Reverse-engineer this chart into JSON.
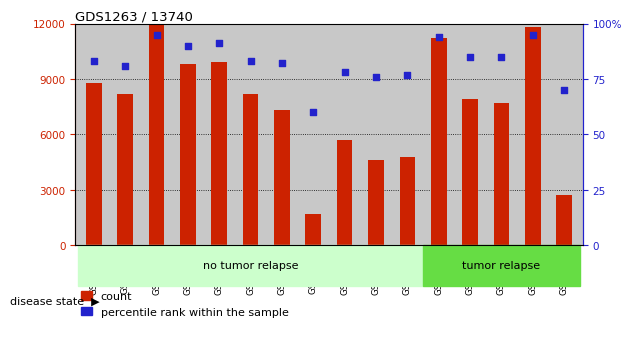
{
  "title": "GDS1263 / 13740",
  "categories": [
    "GSM50474",
    "GSM50496",
    "GSM50504",
    "GSM50505",
    "GSM50506",
    "GSM50507",
    "GSM50508",
    "GSM50509",
    "GSM50511",
    "GSM50512",
    "GSM50473",
    "GSM50475",
    "GSM50510",
    "GSM50513",
    "GSM50514",
    "GSM50515"
  ],
  "counts": [
    8800,
    8200,
    12000,
    9800,
    9900,
    8200,
    7300,
    1700,
    5700,
    4600,
    4800,
    11200,
    7900,
    7700,
    11800,
    2700
  ],
  "percentiles": [
    83,
    81,
    95,
    90,
    91,
    83,
    82,
    60,
    78,
    76,
    77,
    94,
    85,
    85,
    95,
    70
  ],
  "no_tumor_count": 11,
  "tumor_count": 5,
  "bar_color": "#cc2200",
  "dot_color": "#2222cc",
  "left_axis_color": "#cc2200",
  "right_axis_color": "#2222cc",
  "ylim_left": [
    0,
    12000
  ],
  "ylim_right": [
    0,
    100
  ],
  "left_ticks": [
    0,
    3000,
    6000,
    9000,
    12000
  ],
  "right_ticks": [
    0,
    25,
    50,
    75,
    100
  ],
  "right_tick_labels": [
    "0",
    "25",
    "50",
    "75",
    "100%"
  ],
  "disease_state_label": "disease state",
  "no_tumor_label": "no tumor relapse",
  "tumor_label": "tumor relapse",
  "no_tumor_color": "#ccffcc",
  "tumor_color": "#66dd44",
  "legend_count_label": "count",
  "legend_percentile_label": "percentile rank within the sample",
  "bg_color": "#ffffff",
  "grid_color": "#000000",
  "bar_width": 0.5,
  "xlabel_area_color": "#c8c8c8"
}
